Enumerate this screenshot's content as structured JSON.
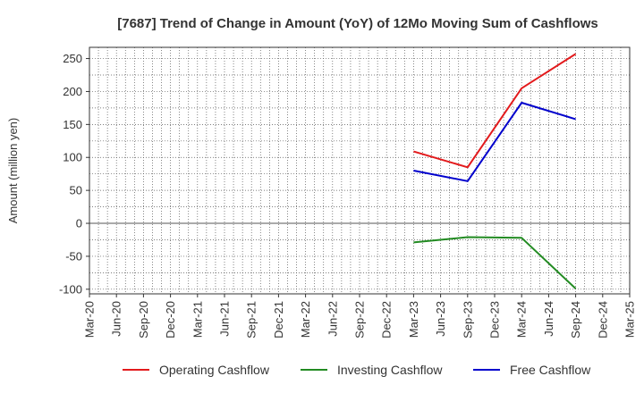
{
  "chart_data": {
    "type": "line",
    "title": "[7687]  Trend of Change in Amount (YoY) of 12Mo Moving Sum of Cashflows",
    "xlabel": "",
    "ylabel": "Amount (million yen)",
    "ylim": [
      -107,
      267
    ],
    "yticks": [
      250,
      200,
      150,
      100,
      50,
      0,
      -50,
      -100
    ],
    "ytick_labels": [
      "250",
      "200",
      "150",
      "100",
      "50",
      "0",
      "-50",
      "-100"
    ],
    "categories": [
      "Mar-20",
      "Jun-20",
      "Sep-20",
      "Dec-20",
      "Mar-21",
      "Jun-21",
      "Sep-21",
      "Dec-21",
      "Mar-22",
      "Jun-22",
      "Sep-22",
      "Dec-22",
      "Mar-23",
      "Jun-23",
      "Sep-23",
      "Dec-23",
      "Mar-24",
      "Jun-24",
      "Sep-24",
      "Dec-24",
      "Mar-25"
    ],
    "grid": true,
    "legend_position": "bottom",
    "series": [
      {
        "name": "Operating Cashflow",
        "color": "#e31a1c",
        "values": [
          null,
          null,
          null,
          null,
          null,
          null,
          null,
          null,
          null,
          null,
          null,
          null,
          109,
          null,
          85,
          null,
          205,
          null,
          257,
          null,
          null
        ]
      },
      {
        "name": "Investing Cashflow",
        "color": "#228b22",
        "values": [
          null,
          null,
          null,
          null,
          null,
          null,
          null,
          null,
          null,
          null,
          null,
          null,
          -29,
          null,
          -21,
          null,
          -22,
          null,
          -99,
          null,
          null
        ]
      },
      {
        "name": "Free Cashflow",
        "color": "#0000cd",
        "values": [
          null,
          null,
          null,
          null,
          null,
          null,
          null,
          null,
          null,
          null,
          null,
          null,
          80,
          null,
          64,
          null,
          183,
          null,
          158,
          null,
          null
        ]
      }
    ]
  }
}
